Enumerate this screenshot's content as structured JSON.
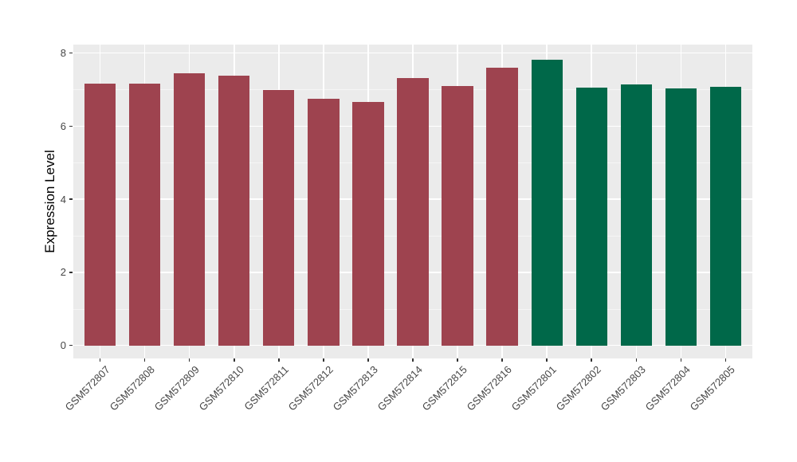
{
  "chart_data": {
    "type": "bar",
    "title": "",
    "xlabel": "",
    "ylabel": "Expression Level",
    "categories": [
      "GSM572807",
      "GSM572808",
      "GSM572809",
      "GSM572810",
      "GSM572811",
      "GSM572812",
      "GSM572813",
      "GSM572814",
      "GSM572815",
      "GSM572816",
      "GSM572801",
      "GSM572802",
      "GSM572803",
      "GSM572804",
      "GSM572805"
    ],
    "values": [
      7.17,
      7.16,
      7.44,
      7.37,
      6.98,
      6.74,
      6.67,
      7.31,
      7.09,
      7.59,
      7.81,
      7.05,
      7.13,
      7.02,
      7.08
    ],
    "bar_groups": [
      0,
      0,
      0,
      0,
      0,
      0,
      0,
      0,
      0,
      0,
      1,
      1,
      1,
      1,
      1
    ],
    "palette": [
      "#9E434F",
      "#006849"
    ],
    "y_ticks": [
      0,
      2,
      4,
      6,
      8
    ],
    "y_minor_ticks": [
      1,
      3,
      5,
      7
    ],
    "ylim": [
      0,
      8.23
    ],
    "grid": "on",
    "legend": "none",
    "panel_background": "#EBEBEB",
    "grid_major_color": "#FFFFFF",
    "grid_minor_color": "#F5F5F5"
  }
}
